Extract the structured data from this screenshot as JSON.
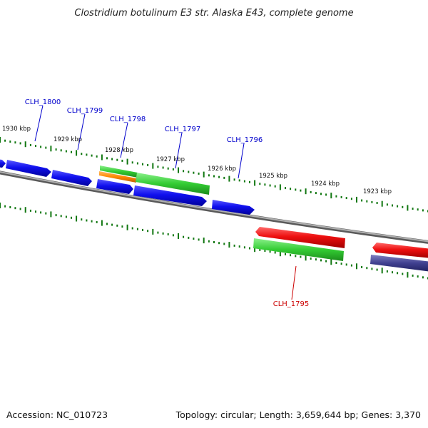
{
  "title": "Clostridium botulinum E3 str. Alaska E43, complete genome",
  "footer": {
    "accession": "Accession: NC_010723",
    "summary": "Topology: circular; Length: 3,659,644 bp; Genes: 3,370"
  },
  "scale_labels": [
    {
      "kbp": 1930,
      "text": "1930 kbp"
    },
    {
      "kbp": 1929,
      "text": "1929 kbp"
    },
    {
      "kbp": 1928,
      "text": "1928 kbp"
    },
    {
      "kbp": 1927,
      "text": "1927 kbp"
    },
    {
      "kbp": 1926,
      "text": "1926 kbp"
    },
    {
      "kbp": 1925,
      "text": "1925 kbp"
    },
    {
      "kbp": 1924,
      "text": "1924 kbp"
    },
    {
      "kbp": 1923,
      "text": "1923 kbp"
    }
  ],
  "gene_labels": [
    {
      "text": "CLH_1800",
      "color": "#0000cc"
    },
    {
      "text": "CLH_1799",
      "color": "#0000cc"
    },
    {
      "text": "CLH_1798",
      "color": "#0000cc"
    },
    {
      "text": "CLH_1797",
      "color": "#0000cc"
    },
    {
      "text": "CLH_1796",
      "color": "#0000cc"
    },
    {
      "text": "CLH_1795",
      "color": "#cc0000"
    }
  ],
  "colors": {
    "backbone": "#8a8a8a",
    "forward_gene": "#1111ee",
    "reverse_gene": "#ee1111",
    "rna_green": "#33cc33",
    "orange": "#ff8800",
    "slate": "#404090",
    "tick": "#117711"
  }
}
